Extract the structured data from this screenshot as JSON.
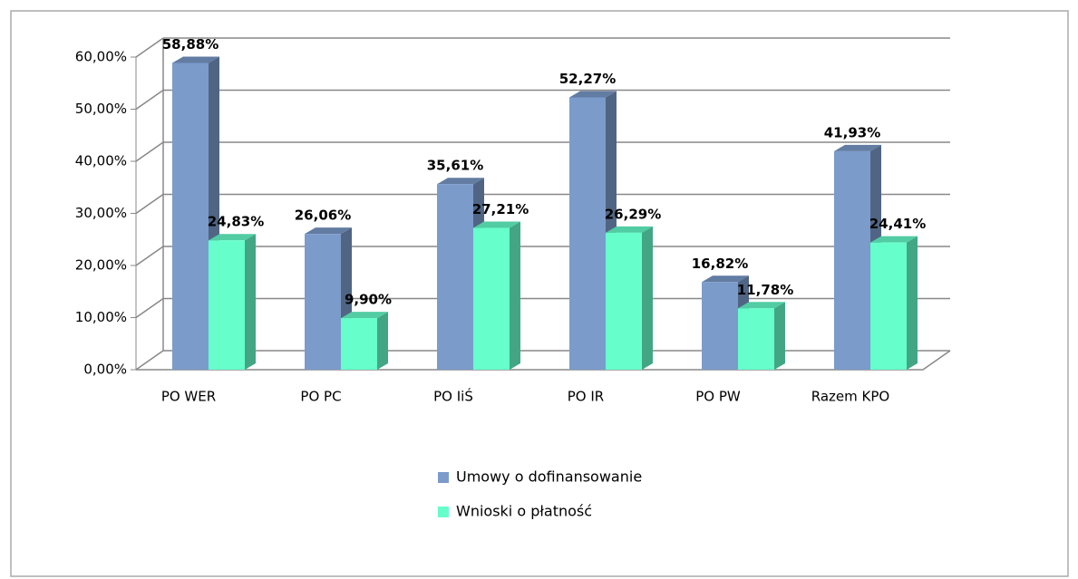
{
  "chart_data": {
    "type": "bar3d",
    "categories": [
      "PO WER",
      "PO PC",
      "PO IiŚ",
      "PO IR",
      "PO PW",
      "Razem KPO"
    ],
    "series": [
      {
        "name": "Umowy o dofinansowanie",
        "color": "#7b9bcb",
        "values": [
          58.88,
          26.06,
          35.61,
          52.27,
          16.82,
          41.93
        ],
        "value_labels": [
          "58,88%",
          "26,06%",
          "35,61%",
          "52,27%",
          "16,82%",
          "41,93%"
        ]
      },
      {
        "name": "Wnioski o płatność",
        "color": "#66ffcc",
        "values": [
          24.83,
          9.9,
          27.21,
          26.29,
          11.78,
          24.41
        ],
        "value_labels": [
          "24,83%",
          "9,90%",
          "27,21%",
          "26,29%",
          "11,78%",
          "24,41%"
        ]
      }
    ],
    "ylim": [
      0,
      60
    ],
    "yticks": [
      {
        "value": 0,
        "label": "0,00%"
      },
      {
        "value": 10,
        "label": "10,00%"
      },
      {
        "value": 20,
        "label": "20,00%"
      },
      {
        "value": 30,
        "label": "30,00%"
      },
      {
        "value": 40,
        "label": "40,00%"
      },
      {
        "value": 50,
        "label": "50,00%"
      },
      {
        "value": 60,
        "label": "60,00%"
      }
    ],
    "grid": true
  }
}
